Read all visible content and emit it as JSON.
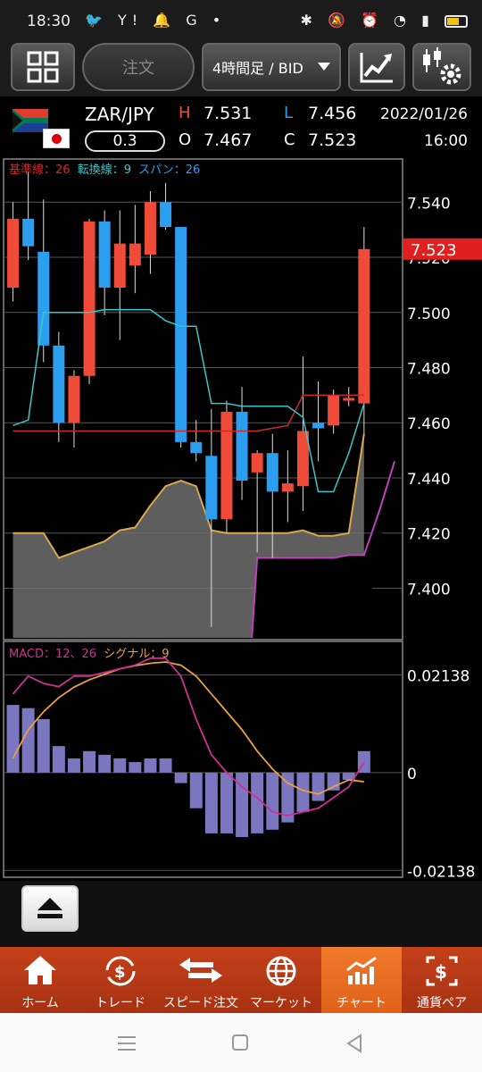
{
  "status": {
    "time": "18:30",
    "left_icons": "🐦 Y! 🔔 G •",
    "right_icons": "✱ 🔕 ⏰ ☰ ▮"
  },
  "toolbar": {
    "order_label": "注文",
    "period_label": "4時間足 / BID"
  },
  "quote": {
    "pair": "ZAR/JPY",
    "spread": "0.3",
    "h_label": "H",
    "h": "7.531",
    "l_label": "L",
    "l": "7.456",
    "o_label": "O",
    "o": "7.467",
    "c_label": "C",
    "c": "7.523",
    "date": "2022/01/26",
    "time": "16:00"
  },
  "colors": {
    "up": "#f04a38",
    "down": "#2b9ef0",
    "kijun": "#d02a2a",
    "tenkan": "#3cc6c6",
    "span": "#d8a84a",
    "macd_hist": "#7a76c0",
    "macd": "#d03090",
    "signal": "#e8a040",
    "lower_line": "#c040c0"
  },
  "legend": {
    "kijun": "基準線：26",
    "tenkan": "転換線：9",
    "span": "スパン：26",
    "macd": "MACD：12、26",
    "signal": "シグナル：9"
  },
  "chart_data": [
    {
      "type": "candlestick",
      "y_ticks": [
        "7.540",
        "7.520",
        "7.500",
        "7.480",
        "7.460",
        "7.440",
        "7.420",
        "7.400"
      ],
      "y_tick_values": [
        7.54,
        7.52,
        7.5,
        7.48,
        7.46,
        7.44,
        7.42,
        7.4
      ],
      "ylim": [
        7.382,
        7.555
      ],
      "current_price": "7.523",
      "candles": [
        {
          "o": 7.509,
          "c": 7.534,
          "h": 7.54,
          "l": 7.504
        },
        {
          "o": 7.534,
          "c": 7.524,
          "h": 7.551,
          "l": 7.519
        },
        {
          "o": 7.522,
          "c": 7.488,
          "h": 7.541,
          "l": 7.482
        },
        {
          "o": 7.488,
          "c": 7.46,
          "h": 7.493,
          "l": 7.453
        },
        {
          "o": 7.46,
          "c": 7.477,
          "h": 7.479,
          "l": 7.451
        },
        {
          "o": 7.477,
          "c": 7.533,
          "h": 7.534,
          "l": 7.474
        },
        {
          "o": 7.533,
          "c": 7.509,
          "h": 7.537,
          "l": 7.499
        },
        {
          "o": 7.509,
          "c": 7.525,
          "h": 7.537,
          "l": 7.49
        },
        {
          "o": 7.517,
          "c": 7.525,
          "h": 7.539,
          "l": 7.507
        },
        {
          "o": 7.521,
          "c": 7.54,
          "h": 7.544,
          "l": 7.514
        },
        {
          "o": 7.54,
          "c": 7.531,
          "h": 7.547,
          "l": 7.53
        },
        {
          "o": 7.531,
          "c": 7.453,
          "h": 7.531,
          "l": 7.451
        },
        {
          "o": 7.453,
          "c": 7.449,
          "h": 7.461,
          "l": 7.446
        },
        {
          "o": 7.448,
          "c": 7.425,
          "h": 7.465,
          "l": 7.386
        },
        {
          "o": 7.425,
          "c": 7.464,
          "h": 7.468,
          "l": 7.42
        },
        {
          "o": 7.464,
          "c": 7.439,
          "h": 7.473,
          "l": 7.432
        },
        {
          "o": 7.442,
          "c": 7.449,
          "h": 7.45,
          "l": 7.413
        },
        {
          "o": 7.449,
          "c": 7.435,
          "h": 7.456,
          "l": 7.411
        },
        {
          "o": 7.435,
          "c": 7.438,
          "h": 7.45,
          "l": 7.424
        },
        {
          "o": 7.437,
          "c": 7.457,
          "h": 7.484,
          "l": 7.428
        },
        {
          "o": 7.46,
          "c": 7.458,
          "h": 7.475,
          "l": 7.446
        },
        {
          "o": 7.459,
          "c": 7.47,
          "h": 7.472,
          "l": 7.456
        },
        {
          "o": 7.468,
          "c": 7.469,
          "h": 7.473,
          "l": 7.466
        },
        {
          "o": 7.467,
          "c": 7.523,
          "h": 7.531,
          "l": 7.456
        }
      ],
      "kijun": [
        7.457,
        7.457,
        7.457,
        7.457,
        7.457,
        7.457,
        7.457,
        7.457,
        7.457,
        7.457,
        7.457,
        7.457,
        7.457,
        7.457,
        7.457,
        7.457,
        7.457,
        7.458,
        7.459,
        7.47,
        7.47,
        7.47,
        7.47,
        7.47
      ],
      "tenkan": [
        7.459,
        7.461,
        7.5,
        7.5,
        7.5,
        7.5,
        7.501,
        7.501,
        7.501,
        7.501,
        7.497,
        7.495,
        7.495,
        7.467,
        7.467,
        7.466,
        7.466,
        7.466,
        7.466,
        7.462,
        7.435,
        7.435,
        7.449,
        7.467
      ],
      "span_upper": [
        7.42,
        7.42,
        7.42,
        7.411,
        7.413,
        7.415,
        7.417,
        7.421,
        7.422,
        7.43,
        7.437,
        7.439,
        7.437,
        7.421,
        7.42,
        7.42,
        7.42,
        7.42,
        7.42,
        7.421,
        7.419,
        7.419,
        7.42,
        7.456
      ],
      "span_lower_start_index": 16,
      "span_lower": [
        7.411,
        7.411,
        7.411,
        7.411,
        7.411,
        7.411,
        7.412,
        7.412,
        7.428,
        7.446
      ]
    },
    {
      "type": "macd",
      "y_ticks": [
        "0.02138",
        "0",
        "-0.02138"
      ],
      "y_tick_values": [
        0.02138,
        0,
        -0.02138
      ],
      "ylim": [
        -0.0225,
        0.0283
      ],
      "hist": [
        0.0148,
        0.0141,
        0.0117,
        0.0058,
        0.0031,
        0.0047,
        0.0039,
        0.0031,
        0.0023,
        0.0031,
        0.0031,
        -0.0023,
        -0.0078,
        -0.0133,
        -0.0133,
        -0.0141,
        -0.0133,
        -0.0125,
        -0.0109,
        -0.0086,
        -0.0062,
        -0.0039,
        -0.0016,
        0.0047
      ],
      "macd": [
        0.0172,
        0.0211,
        0.0195,
        0.0188,
        0.0211,
        0.0211,
        0.0219,
        0.0227,
        0.0235,
        0.025,
        0.025,
        0.0211,
        0.0117,
        0.0039,
        0.0,
        -0.0031,
        -0.0055,
        -0.0086,
        -0.0094,
        -0.0086,
        -0.0078,
        -0.0055,
        -0.0031,
        0.0023
      ],
      "signal": [
        0.0031,
        0.0094,
        0.0133,
        0.0164,
        0.0187,
        0.0203,
        0.0215,
        0.0227,
        0.0234,
        0.0239,
        0.0242,
        0.0235,
        0.0211,
        0.0172,
        0.0133,
        0.0094,
        0.0047,
        0.0008,
        -0.0023,
        -0.0039,
        -0.0047,
        -0.0031,
        -0.0016,
        -0.002
      ]
    }
  ],
  "nav": [
    {
      "label": "ホーム",
      "icon": "home-icon"
    },
    {
      "label": "トレード",
      "icon": "trade-icon"
    },
    {
      "label": "スピード注文",
      "icon": "speed-order-icon"
    },
    {
      "label": "マーケット",
      "icon": "market-icon"
    },
    {
      "label": "チャート",
      "icon": "chart-icon"
    },
    {
      "label": "通貨ペア",
      "icon": "currency-pair-icon"
    }
  ]
}
